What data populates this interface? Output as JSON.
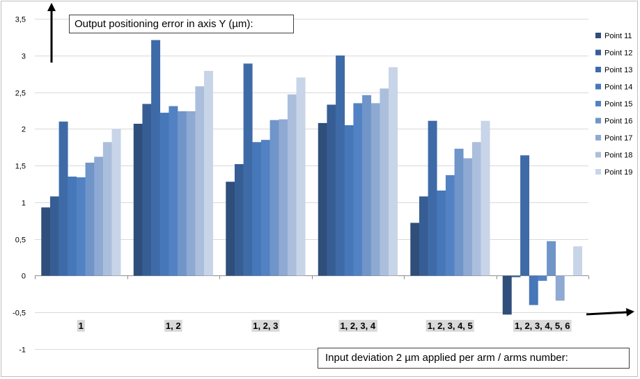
{
  "chart_data": {
    "type": "bar",
    "title": "Output positioning error in axis Y (µm):",
    "xlabel": "Input deviation 2 µm applied per arm / arms number:",
    "ylabel": "",
    "ylim": [
      -1,
      3.5
    ],
    "yticks": [
      "-1",
      "-0,5",
      "0",
      "0,5",
      "1",
      "1,5",
      "2",
      "2,5",
      "3",
      "3,5"
    ],
    "grid": true,
    "legend_position": "right",
    "categories": [
      "1",
      "1, 2",
      "1, 2, 3",
      "1, 2, 3, 4",
      "1, 2, 3, 4, 5",
      "1, 2, 3, 4, 5, 6"
    ],
    "series": [
      {
        "name": "Point 11",
        "color": "#2f4e7a",
        "values": [
          0.93,
          2.07,
          1.28,
          2.08,
          0.72,
          -0.53
        ]
      },
      {
        "name": "Point 12",
        "color": "#375e94",
        "values": [
          1.08,
          2.34,
          1.52,
          2.33,
          1.08,
          -0.02
        ]
      },
      {
        "name": "Point 13",
        "color": "#3e6ba8",
        "values": [
          2.1,
          3.21,
          2.89,
          3.0,
          2.11,
          1.64
        ]
      },
      {
        "name": "Point 14",
        "color": "#4677b9",
        "values": [
          1.35,
          2.22,
          1.82,
          2.05,
          1.16,
          -0.4
        ]
      },
      {
        "name": "Point 15",
        "color": "#5282c3",
        "values": [
          1.34,
          2.31,
          1.85,
          2.35,
          1.37,
          -0.07
        ]
      },
      {
        "name": "Point 16",
        "color": "#6f95c9",
        "values": [
          1.54,
          2.24,
          2.12,
          2.46,
          1.73,
          0.47
        ]
      },
      {
        "name": "Point 17",
        "color": "#8ea9d2",
        "values": [
          1.62,
          2.24,
          2.13,
          2.35,
          1.6,
          -0.34
        ]
      },
      {
        "name": "Point 18",
        "color": "#abbfdd",
        "values": [
          1.82,
          2.58,
          2.47,
          2.55,
          1.82,
          0.0
        ]
      },
      {
        "name": "Point 19",
        "color": "#c8d4e8",
        "values": [
          2.0,
          2.79,
          2.7,
          2.84,
          2.11,
          0.4
        ]
      }
    ]
  }
}
